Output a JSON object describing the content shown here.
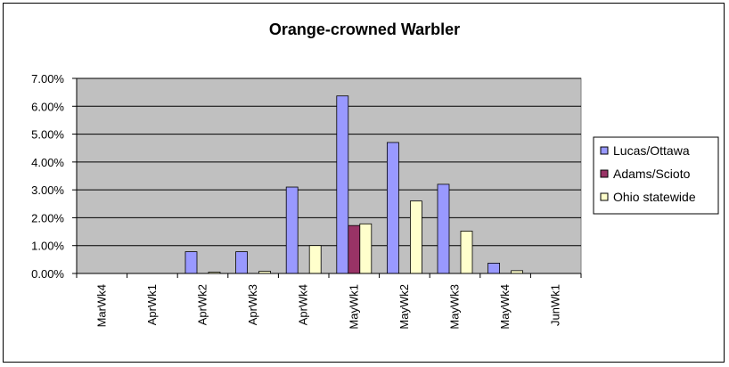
{
  "chart_data": {
    "type": "bar",
    "title": "Orange-crowned Warbler",
    "categories": [
      "MarWk4",
      "AprWk1",
      "AprWk2",
      "AprWk3",
      "AprWk4",
      "MayWk1",
      "MayWk2",
      "MayWk3",
      "MayWk4",
      "JunWk1"
    ],
    "series": [
      {
        "name": "Lucas/Ottawa",
        "color": "#9999ff",
        "values": [
          0,
          0,
          0.78,
          0.78,
          3.1,
          6.37,
          4.7,
          3.2,
          0.37,
          0
        ]
      },
      {
        "name": "Adams/Scioto",
        "color": "#993366",
        "values": [
          0,
          0,
          0,
          0,
          0,
          1.72,
          0,
          0,
          0,
          0
        ]
      },
      {
        "name": "Ohio statewide",
        "color": "#ffffcc",
        "values": [
          0,
          0,
          0.05,
          0.08,
          1.0,
          1.78,
          2.6,
          1.52,
          0.1,
          0
        ]
      }
    ],
    "ylim": [
      0,
      7
    ],
    "yticks": [
      "0.00%",
      "1.00%",
      "2.00%",
      "3.00%",
      "4.00%",
      "5.00%",
      "6.00%",
      "7.00%"
    ],
    "plot_background": "#c0c0c0",
    "grid": true,
    "legend_position": "right"
  }
}
